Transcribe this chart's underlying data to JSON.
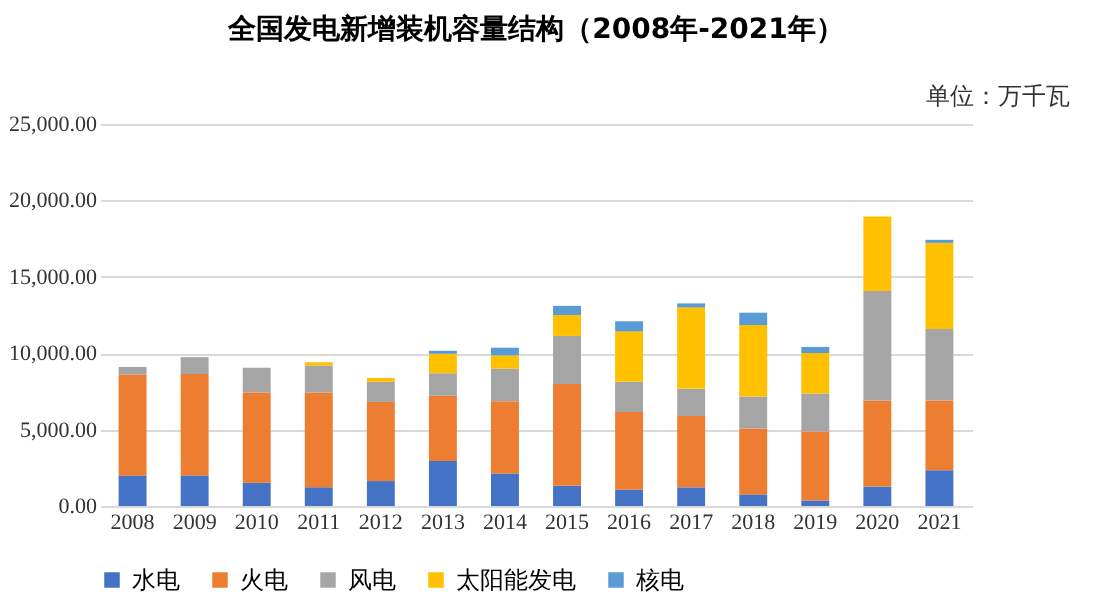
{
  "chart_data": {
    "type": "bar",
    "stacked": true,
    "title": "全国发电新增装机容量结构（2008年-2021年）",
    "annotations": [
      "单位：万千瓦"
    ],
    "categories": [
      "2008",
      "2009",
      "2010",
      "2011",
      "2012",
      "2013",
      "2014",
      "2015",
      "2016",
      "2017",
      "2018",
      "2019",
      "2020",
      "2021"
    ],
    "series": [
      {
        "name": "水电",
        "color": "#4472c4",
        "values": [
          2000,
          2000,
          1520,
          1220,
          1630,
          2950,
          2130,
          1320,
          1070,
          1220,
          760,
          360,
          1270,
          2340
        ]
      },
      {
        "name": "火电",
        "color": "#ed7d31",
        "values": [
          6600,
          6640,
          5900,
          6200,
          5180,
          4260,
          4730,
          6660,
          5080,
          4670,
          4320,
          4520,
          5640,
          4570
        ]
      },
      {
        "name": "风电",
        "color": "#a5a5a5",
        "values": [
          500,
          1100,
          1620,
          1780,
          1320,
          1480,
          2130,
          3150,
          1980,
          1780,
          2080,
          2490,
          7160,
          4670
        ]
      },
      {
        "name": "太阳能发电",
        "color": "#ffc000",
        "values": [
          null,
          null,
          null,
          200,
          250,
          1270,
          870,
          1370,
          3300,
          5330,
          4680,
          2640,
          4880,
          5640
        ]
      },
      {
        "name": "核电",
        "color": "#5b9bd5",
        "values": [
          null,
          null,
          null,
          null,
          null,
          200,
          500,
          600,
          660,
          260,
          810,
          400,
          null,
          200
        ]
      }
    ],
    "ylim": [
      0,
      25000
    ],
    "yticks": [
      {
        "value": 0,
        "label": "0.00"
      },
      {
        "value": 5000,
        "label": "5,000.00"
      },
      {
        "value": 10000,
        "label": "10,000.00"
      },
      {
        "value": 15000,
        "label": "15,000.00"
      },
      {
        "value": 20000,
        "label": "20,000.00"
      },
      {
        "value": 25000,
        "label": "25,000.00"
      }
    ],
    "grid": "y",
    "legend": "bottom"
  }
}
